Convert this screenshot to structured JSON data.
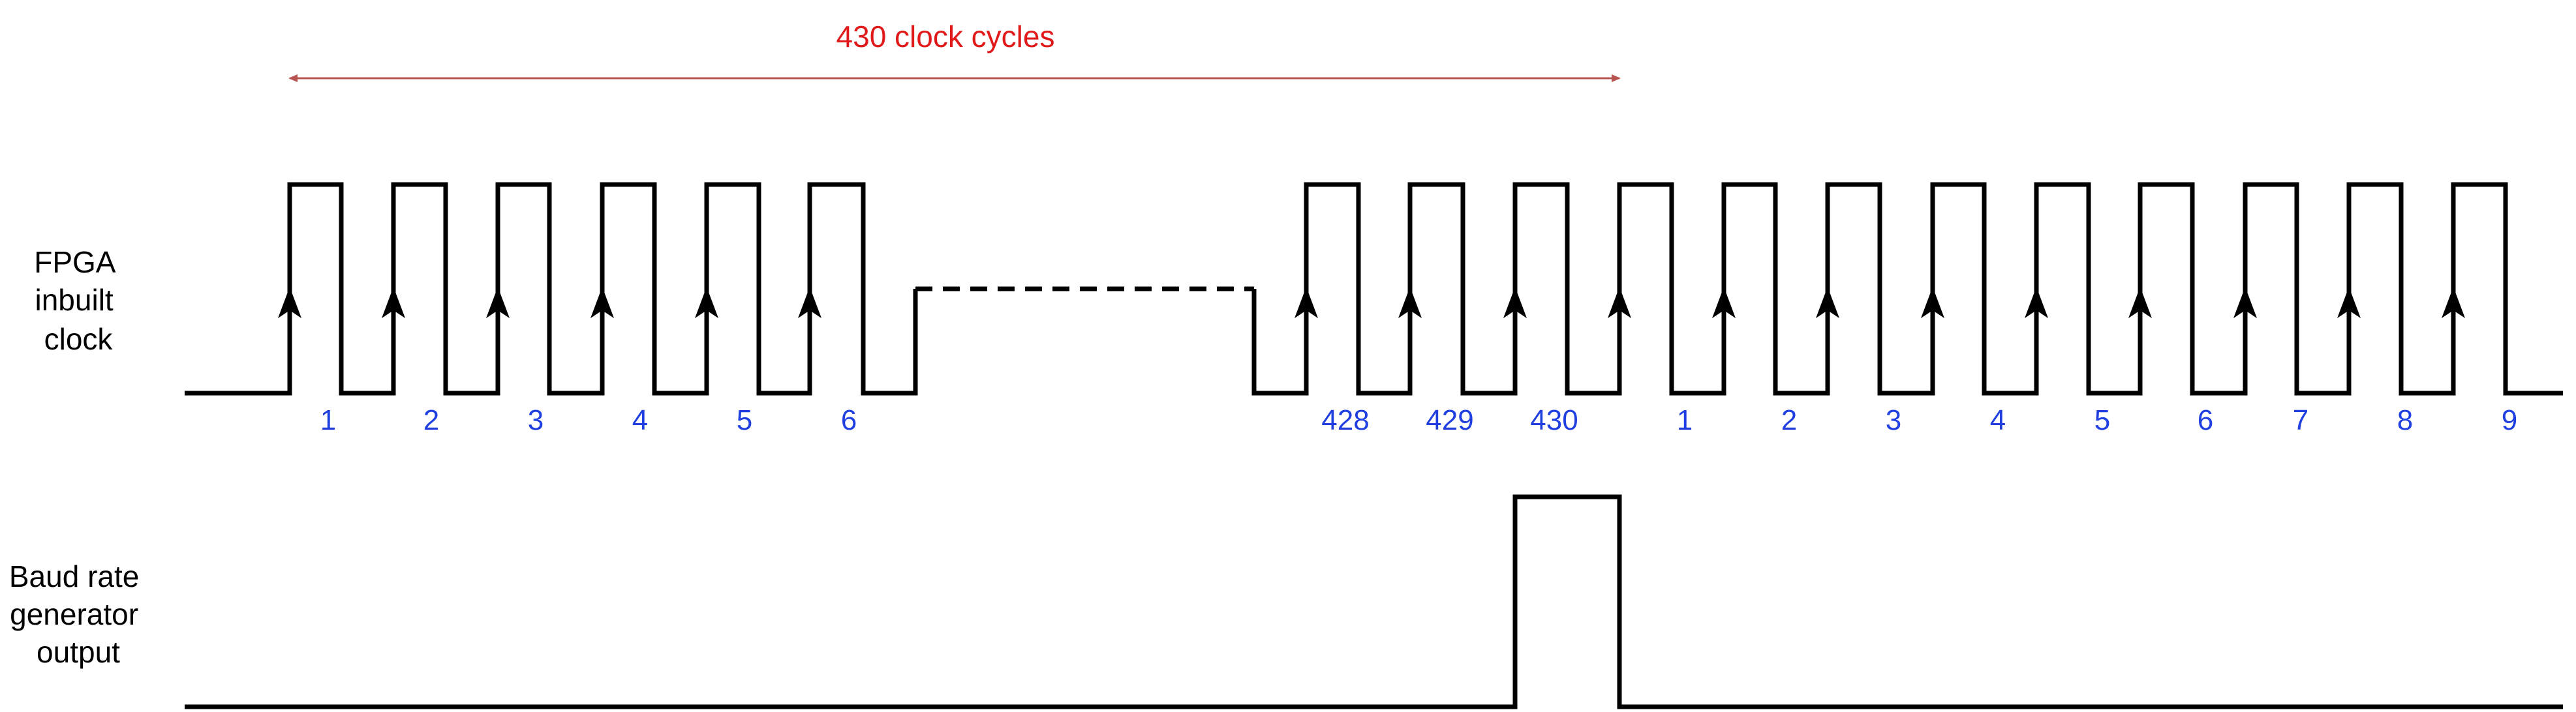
{
  "span": {
    "label": "430 clock cycles",
    "color": "#b85450"
  },
  "signals": {
    "clock": {
      "label_lines": [
        "FPGA",
        "inbuilt",
        "clock"
      ]
    },
    "baud": {
      "label_lines": [
        "Baud rate",
        "generator",
        "output"
      ]
    }
  },
  "cycle_labels": {
    "first_segment": [
      "1",
      "2",
      "3",
      "4",
      "5",
      "6"
    ],
    "second_segment": [
      "428",
      "429",
      "430",
      "1",
      "2",
      "3",
      "4",
      "5",
      "6",
      "7",
      "8",
      "9"
    ]
  },
  "colors": {
    "waveform": "#000000",
    "cycle_label": "#1f3fe0",
    "span_label": "#e01a1a"
  }
}
